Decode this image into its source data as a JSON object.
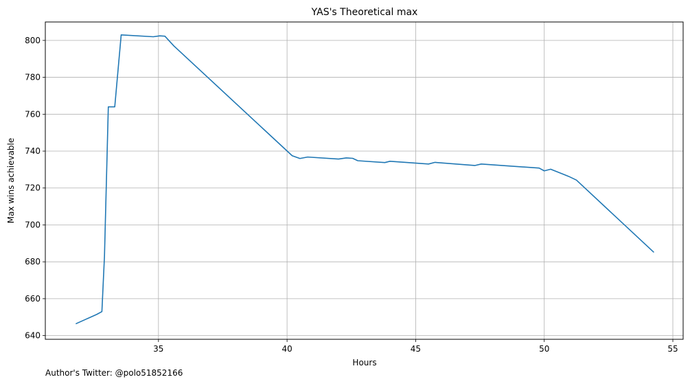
{
  "chart_data": {
    "type": "line",
    "title": "YAS's Theoretical max",
    "xlabel": "Hours",
    "ylabel": "Max wins achievable",
    "xlim": [
      30.6,
      55.4
    ],
    "ylim": [
      638,
      810
    ],
    "xticks": [
      35,
      40,
      45,
      50,
      55
    ],
    "yticks": [
      640,
      660,
      680,
      700,
      720,
      740,
      760,
      780,
      800
    ],
    "grid": true,
    "series": [
      {
        "color": "#1f77b4",
        "x": [
          31.8,
          32.2,
          32.6,
          32.8,
          32.9,
          33.05,
          33.3,
          33.55,
          34.8,
          35.05,
          35.25,
          35.6,
          40.2,
          40.5,
          40.8,
          42.0,
          42.3,
          42.55,
          42.75,
          43.8,
          44.0,
          45.5,
          45.75,
          47.3,
          47.55,
          49.8,
          50.0,
          50.25,
          50.95,
          51.25,
          54.25
        ],
        "y": [
          646.5,
          649,
          651.5,
          653,
          683,
          764,
          764,
          803,
          802,
          802.5,
          802.3,
          797,
          737.5,
          736,
          736.8,
          735.7,
          736.3,
          736.1,
          734.8,
          733.8,
          734.5,
          733,
          733.9,
          732.2,
          733,
          730.8,
          729.3,
          730.2,
          726.3,
          724.3,
          685.3
        ]
      }
    ]
  },
  "footer": {
    "author": "Author's Twitter: @polo51852166"
  }
}
